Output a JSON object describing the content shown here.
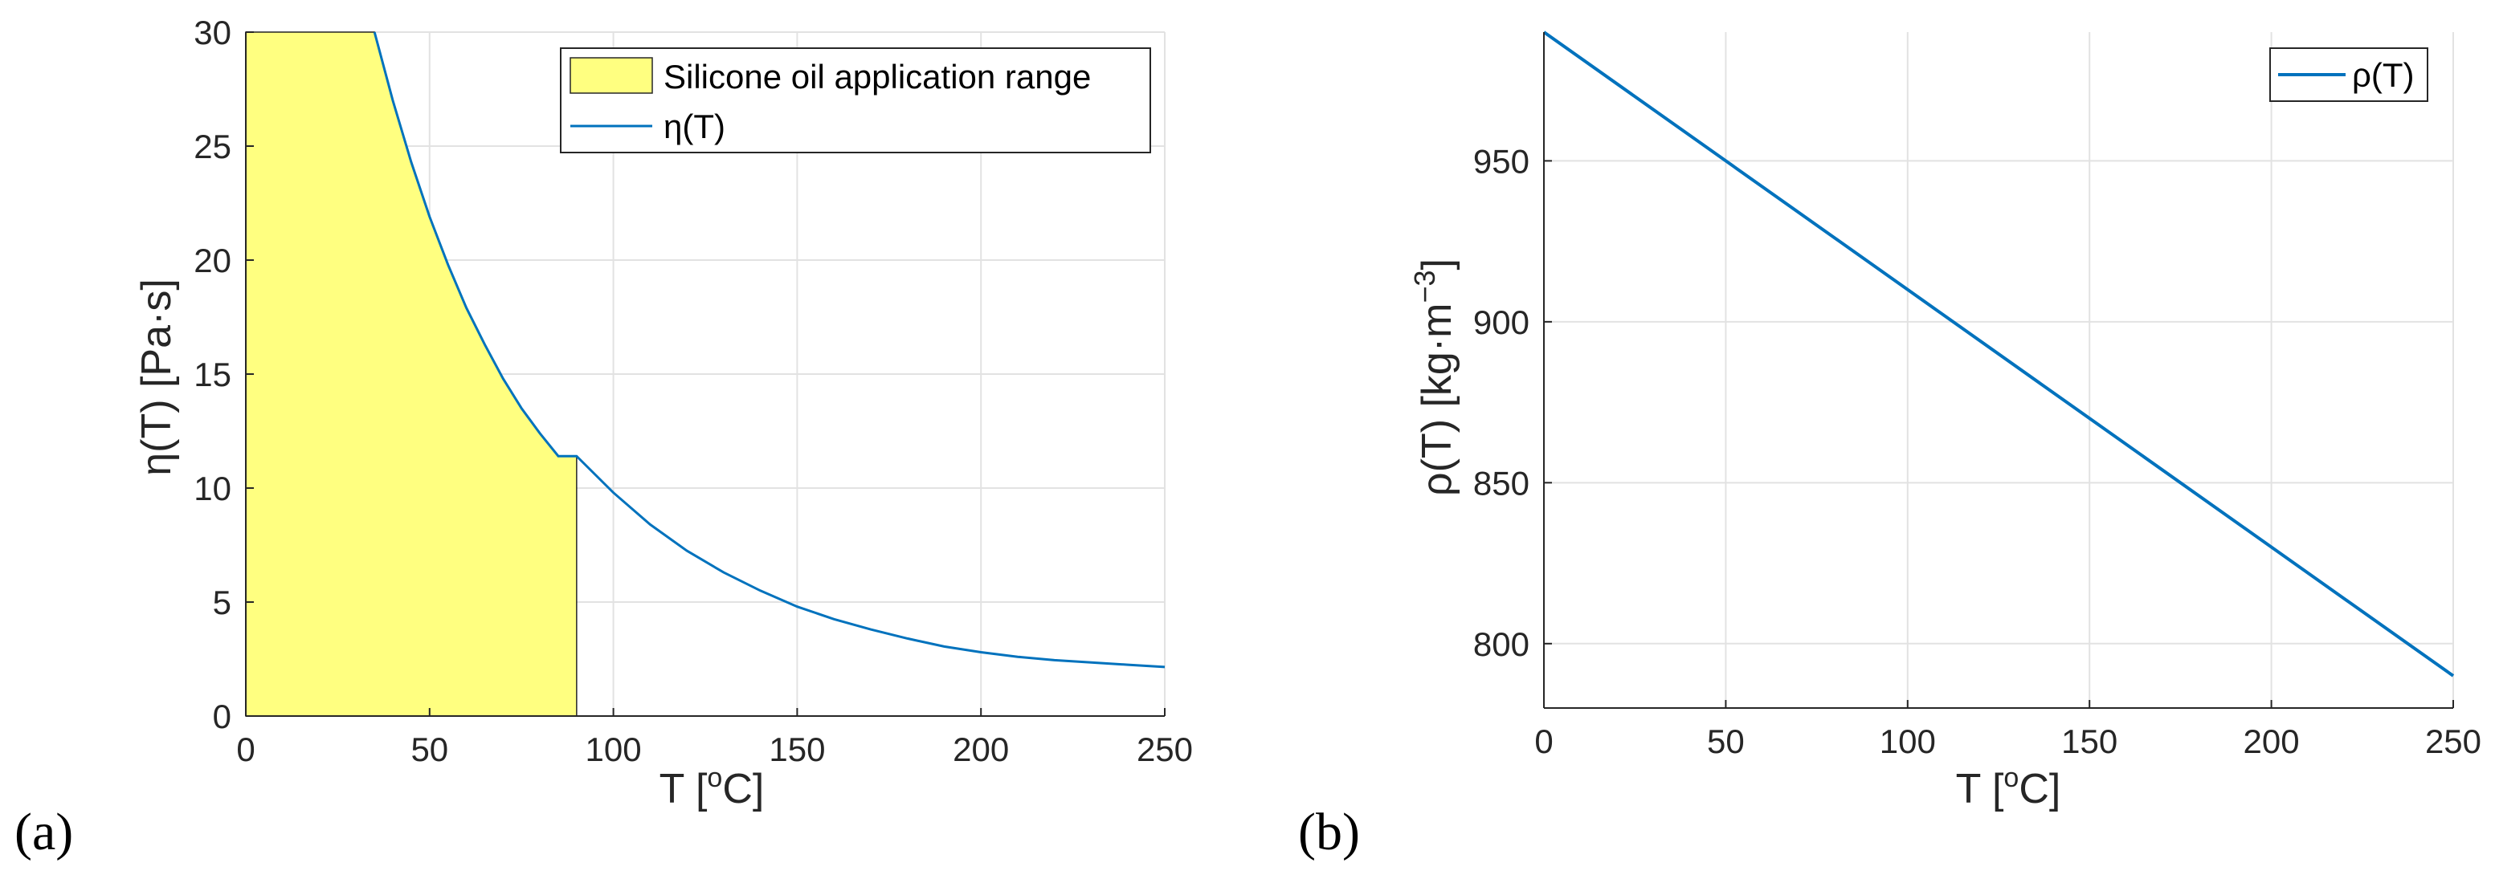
{
  "chart_data": [
    {
      "panel_label": "(a)",
      "type": "line",
      "title": "",
      "xlabel": "T [",
      "xlabel_sup": "o",
      "xlabel_end": "C]",
      "ylabel": "η(T) [Pa·s]",
      "xlim": [
        0,
        250
      ],
      "ylim": [
        0,
        30
      ],
      "x_ticks": [
        0,
        50,
        100,
        150,
        200,
        250
      ],
      "y_ticks": [
        0,
        5,
        10,
        15,
        20,
        25,
        30
      ],
      "x_tick_labels": [
        "0",
        "50",
        "100",
        "150",
        "200",
        "250"
      ],
      "y_tick_labels": [
        "0",
        "5",
        "10",
        "15",
        "20",
        "25",
        "30"
      ],
      "grid": true,
      "legend_position": "top-right",
      "shaded_region": {
        "name": "Silicone oil application range",
        "x_start": 0,
        "x_end": 90,
        "color": "#ffff80"
      },
      "series": [
        {
          "name": "η(T)",
          "color": "#0072bd",
          "x": [
            35,
            40,
            45,
            50,
            55,
            60,
            65,
            70,
            75,
            80,
            85,
            90,
            100,
            110,
            120,
            130,
            140,
            150,
            160,
            170,
            180,
            190,
            200,
            210,
            220,
            230,
            240,
            250
          ],
          "y": [
            30.0,
            27.0,
            24.3,
            21.9,
            19.8,
            17.9,
            16.3,
            14.8,
            13.5,
            12.4,
            11.4,
            11.4,
            9.8,
            8.4,
            7.25,
            6.3,
            5.5,
            4.8,
            4.25,
            3.8,
            3.4,
            3.05,
            2.8,
            2.6,
            2.45,
            2.35,
            2.25,
            2.15
          ]
        }
      ]
    },
    {
      "panel_label": "(b)",
      "type": "line",
      "title": "",
      "xlabel": "T [",
      "xlabel_sup": "o",
      "xlabel_end": "C]",
      "ylabel": "ρ(T) [kg·m",
      "ylabel_sup": "−3",
      "ylabel_end": "]",
      "xlim": [
        0,
        250
      ],
      "ylim": [
        780,
        990
      ],
      "x_ticks": [
        0,
        50,
        100,
        150,
        200,
        250
      ],
      "y_ticks": [
        800,
        850,
        900,
        950
      ],
      "x_tick_labels": [
        "0",
        "50",
        "100",
        "150",
        "200",
        "250"
      ],
      "y_tick_labels": [
        "800",
        "850",
        "900",
        "950"
      ],
      "grid": true,
      "legend_position": "top-right",
      "series": [
        {
          "name": "ρ(T)",
          "color": "#0072bd",
          "x": [
            0,
            250
          ],
          "y": [
            990,
            790
          ]
        }
      ]
    }
  ]
}
